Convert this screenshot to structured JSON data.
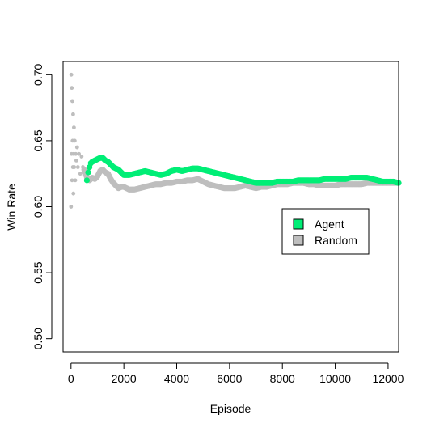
{
  "chart_data": {
    "type": "scatter",
    "title": "",
    "xlabel": "Episode",
    "ylabel": "Win Rate",
    "xlim": [
      -300,
      12400
    ],
    "ylim": [
      0.49,
      0.71
    ],
    "x_ticks": [
      0,
      2000,
      4000,
      6000,
      8000,
      10000,
      12000
    ],
    "x_tick_labels": [
      "0",
      "2000",
      "4000",
      "6000",
      "8000",
      "10000",
      "12000"
    ],
    "y_ticks": [
      0.5,
      0.55,
      0.6,
      0.65,
      0.7
    ],
    "y_tick_labels": [
      "0.50",
      "0.55",
      "0.60",
      "0.65",
      "0.70"
    ],
    "grid": false,
    "legend_position": "right",
    "series": [
      {
        "name": "Random",
        "color": "#bebebe",
        "noisy_start": [
          [
            0,
            0.6
          ],
          [
            10,
            0.7
          ],
          [
            20,
            0.64
          ],
          [
            30,
            0.69
          ],
          [
            40,
            0.62
          ],
          [
            50,
            0.68
          ],
          [
            60,
            0.65
          ],
          [
            70,
            0.63
          ],
          [
            80,
            0.67
          ],
          [
            90,
            0.61
          ],
          [
            100,
            0.64
          ],
          [
            110,
            0.66
          ],
          [
            120,
            0.63
          ],
          [
            140,
            0.65
          ],
          [
            160,
            0.62
          ],
          [
            180,
            0.64
          ],
          [
            200,
            0.635
          ],
          [
            230,
            0.645
          ],
          [
            260,
            0.63
          ],
          [
            300,
            0.64
          ],
          [
            350,
            0.625
          ],
          [
            400,
            0.638
          ],
          [
            450,
            0.63
          ]
        ],
        "points": [
          [
            500,
            0.628
          ],
          [
            600,
            0.622
          ],
          [
            700,
            0.62
          ],
          [
            800,
            0.622
          ],
          [
            900,
            0.621
          ],
          [
            1000,
            0.623
          ],
          [
            1100,
            0.627
          ],
          [
            1200,
            0.628
          ],
          [
            1300,
            0.626
          ],
          [
            1400,
            0.625
          ],
          [
            1500,
            0.621
          ],
          [
            1600,
            0.618
          ],
          [
            1700,
            0.616
          ],
          [
            1800,
            0.614
          ],
          [
            1900,
            0.615
          ],
          [
            2000,
            0.615
          ],
          [
            2200,
            0.613
          ],
          [
            2400,
            0.613
          ],
          [
            2600,
            0.614
          ],
          [
            2800,
            0.615
          ],
          [
            3000,
            0.616
          ],
          [
            3200,
            0.617
          ],
          [
            3400,
            0.617
          ],
          [
            3600,
            0.618
          ],
          [
            3800,
            0.618
          ],
          [
            4000,
            0.619
          ],
          [
            4200,
            0.619
          ],
          [
            4400,
            0.62
          ],
          [
            4600,
            0.62
          ],
          [
            4800,
            0.621
          ],
          [
            5000,
            0.619
          ],
          [
            5200,
            0.617
          ],
          [
            5400,
            0.616
          ],
          [
            5600,
            0.615
          ],
          [
            5800,
            0.614
          ],
          [
            6000,
            0.614
          ],
          [
            6200,
            0.614
          ],
          [
            6400,
            0.615
          ],
          [
            6600,
            0.616
          ],
          [
            6800,
            0.615
          ],
          [
            7000,
            0.614
          ],
          [
            7200,
            0.615
          ],
          [
            7400,
            0.615
          ],
          [
            7600,
            0.616
          ],
          [
            7800,
            0.617
          ],
          [
            8000,
            0.617
          ],
          [
            8200,
            0.617
          ],
          [
            8400,
            0.618
          ],
          [
            8600,
            0.618
          ],
          [
            8800,
            0.618
          ],
          [
            9000,
            0.617
          ],
          [
            9200,
            0.617
          ],
          [
            9400,
            0.616
          ],
          [
            9600,
            0.616
          ],
          [
            9800,
            0.616
          ],
          [
            10000,
            0.616
          ],
          [
            10200,
            0.617
          ],
          [
            10400,
            0.617
          ],
          [
            10600,
            0.617
          ],
          [
            10800,
            0.617
          ],
          [
            11000,
            0.617
          ],
          [
            11200,
            0.618
          ],
          [
            11400,
            0.618
          ],
          [
            11600,
            0.618
          ],
          [
            11800,
            0.618
          ],
          [
            12000,
            0.618
          ],
          [
            12200,
            0.618
          ],
          [
            12400,
            0.618
          ]
        ]
      },
      {
        "name": "Agent",
        "color": "#00ee76",
        "points": [
          [
            600,
            0.62
          ],
          [
            650,
            0.626
          ],
          [
            700,
            0.63
          ],
          [
            750,
            0.633
          ],
          [
            800,
            0.634
          ],
          [
            900,
            0.635
          ],
          [
            1000,
            0.636
          ],
          [
            1100,
            0.637
          ],
          [
            1200,
            0.637
          ],
          [
            1300,
            0.635
          ],
          [
            1400,
            0.634
          ],
          [
            1500,
            0.632
          ],
          [
            1600,
            0.63
          ],
          [
            1700,
            0.629
          ],
          [
            1800,
            0.628
          ],
          [
            1900,
            0.626
          ],
          [
            2000,
            0.624
          ],
          [
            2200,
            0.624
          ],
          [
            2400,
            0.625
          ],
          [
            2600,
            0.626
          ],
          [
            2800,
            0.627
          ],
          [
            3000,
            0.626
          ],
          [
            3200,
            0.625
          ],
          [
            3400,
            0.624
          ],
          [
            3600,
            0.625
          ],
          [
            3800,
            0.627
          ],
          [
            4000,
            0.628
          ],
          [
            4200,
            0.627
          ],
          [
            4400,
            0.628
          ],
          [
            4600,
            0.629
          ],
          [
            4800,
            0.629
          ],
          [
            5000,
            0.628
          ],
          [
            5200,
            0.627
          ],
          [
            5400,
            0.626
          ],
          [
            5600,
            0.625
          ],
          [
            5800,
            0.624
          ],
          [
            6000,
            0.623
          ],
          [
            6200,
            0.622
          ],
          [
            6400,
            0.621
          ],
          [
            6600,
            0.62
          ],
          [
            6800,
            0.619
          ],
          [
            7000,
            0.618
          ],
          [
            7200,
            0.618
          ],
          [
            7400,
            0.618
          ],
          [
            7600,
            0.618
          ],
          [
            7800,
            0.619
          ],
          [
            8000,
            0.619
          ],
          [
            8200,
            0.619
          ],
          [
            8400,
            0.619
          ],
          [
            8600,
            0.62
          ],
          [
            8800,
            0.62
          ],
          [
            9000,
            0.62
          ],
          [
            9200,
            0.62
          ],
          [
            9400,
            0.62
          ],
          [
            9600,
            0.621
          ],
          [
            9800,
            0.621
          ],
          [
            10000,
            0.621
          ],
          [
            10200,
            0.621
          ],
          [
            10400,
            0.621
          ],
          [
            10600,
            0.622
          ],
          [
            10800,
            0.622
          ],
          [
            11000,
            0.622
          ],
          [
            11200,
            0.622
          ],
          [
            11400,
            0.621
          ],
          [
            11600,
            0.62
          ],
          [
            11800,
            0.619
          ],
          [
            12000,
            0.619
          ],
          [
            12200,
            0.619
          ],
          [
            12400,
            0.618
          ]
        ]
      }
    ],
    "legend": [
      {
        "label": "Agent",
        "color": "#00ee76"
      },
      {
        "label": "Random",
        "color": "#bebebe"
      }
    ]
  }
}
